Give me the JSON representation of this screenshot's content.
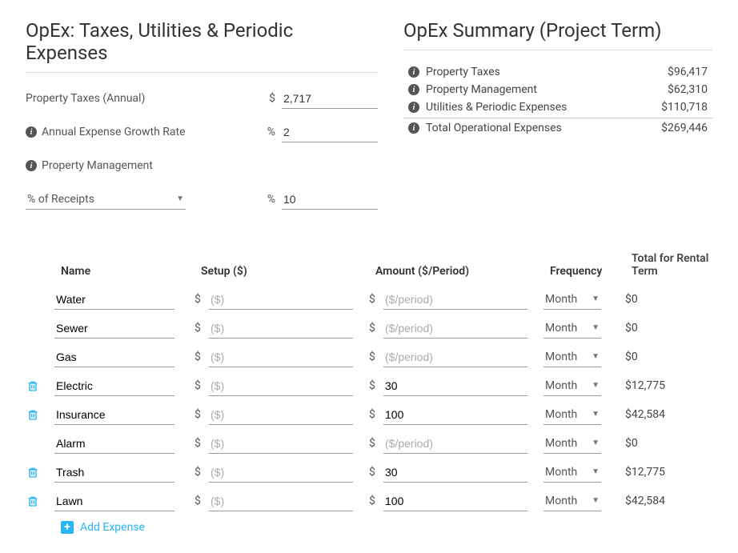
{
  "left_heading": "OpEx: Taxes, Utilities & Periodic Expenses",
  "right_heading": "OpEx Summary (Project Term)",
  "form": {
    "property_taxes_label": "Property Taxes (Annual)",
    "property_taxes_unit": "$",
    "property_taxes_value": "2,717",
    "growth_label": "Annual Expense Growth Rate",
    "growth_unit": "%",
    "growth_value": "2",
    "mgmt_label": "Property Management",
    "mgmt_basis": "% of Receipts",
    "mgmt_unit": "%",
    "mgmt_value": "10"
  },
  "summary": [
    {
      "label": "Property Taxes",
      "value": "$96,417"
    },
    {
      "label": "Property Management",
      "value": "$62,310"
    },
    {
      "label": "Utilities & Periodic Expenses",
      "value": "$110,718"
    },
    {
      "label": "Total Operational Expenses",
      "value": "$269,446",
      "total": true
    }
  ],
  "table": {
    "headers": {
      "name": "Name",
      "setup": "Setup ($)",
      "amount": "Amount ($/Period)",
      "frequency": "Frequency",
      "total": "Total for Rental Term"
    },
    "setup_placeholder": "($)",
    "amount_placeholder": "($/period)",
    "rows": [
      {
        "name": "Water",
        "setup": "",
        "amount": "",
        "freq": "Month",
        "total": "$0",
        "deletable": false
      },
      {
        "name": "Sewer",
        "setup": "",
        "amount": "",
        "freq": "Month",
        "total": "$0",
        "deletable": false
      },
      {
        "name": "Gas",
        "setup": "",
        "amount": "",
        "freq": "Month",
        "total": "$0",
        "deletable": false
      },
      {
        "name": "Electric",
        "setup": "",
        "amount": "30",
        "freq": "Month",
        "total": "$12,775",
        "deletable": true
      },
      {
        "name": "Insurance",
        "setup": "",
        "amount": "100",
        "freq": "Month",
        "total": "$42,584",
        "deletable": true
      },
      {
        "name": "Alarm",
        "setup": "",
        "amount": "",
        "freq": "Month",
        "total": "$0",
        "deletable": false
      },
      {
        "name": "Trash",
        "setup": "",
        "amount": "30",
        "freq": "Month",
        "total": "$12,775",
        "deletable": true
      },
      {
        "name": "Lawn",
        "setup": "",
        "amount": "100",
        "freq": "Month",
        "total": "$42,584",
        "deletable": true
      }
    ],
    "add_label": "Add Expense"
  },
  "colors": {
    "accent": "#29b6f6",
    "delete_icon": "#29b6f6"
  }
}
